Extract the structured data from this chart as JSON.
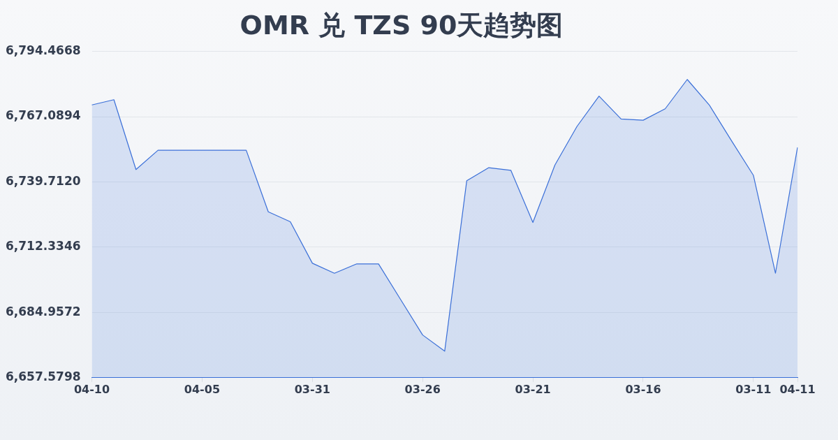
{
  "chart_data": {
    "type": "area",
    "title": "OMR 兑 TZS 90天趋势图",
    "categories": [
      "04-10",
      null,
      null,
      null,
      null,
      "04-05",
      null,
      null,
      null,
      null,
      "03-31",
      null,
      null,
      null,
      null,
      "03-26",
      null,
      null,
      null,
      null,
      "03-21",
      null,
      null,
      null,
      null,
      "03-16",
      null,
      null,
      null,
      null,
      "03-11",
      null,
      "04-11"
    ],
    "series": [
      {
        "color": "#3a6fd8",
        "values": [
          6772.0,
          6774.2,
          6744.9,
          6753.0,
          6753.0,
          6753.0,
          6753.0,
          6753.0,
          6727.2,
          6723.0,
          6705.6,
          6701.4,
          6705.3,
          6705.3,
          6690.4,
          6675.5,
          6668.7,
          6740.2,
          6745.7,
          6744.6,
          6722.7,
          6746.8,
          6763.0,
          6775.7,
          6766.1,
          6765.6,
          6770.4,
          6782.7,
          6772.0,
          6757.1,
          6742.5,
          6701.4,
          6754.2
        ]
      }
    ],
    "ylim": [
      6657.5798,
      6794.4668
    ],
    "yticks": [
      {
        "value": 6657.5798,
        "label": "6,657.5798"
      },
      {
        "value": 6684.9572,
        "label": "6,684.9572"
      },
      {
        "value": 6712.3346,
        "label": "6,712.3346"
      },
      {
        "value": 6739.712,
        "label": "6,739.7120"
      },
      {
        "value": 6767.0894,
        "label": "6,767.0894"
      },
      {
        "value": 6794.4668,
        "label": "6,794.4668"
      }
    ],
    "grid": "y",
    "legend": false,
    "marker": "none",
    "line_style": "solid"
  }
}
